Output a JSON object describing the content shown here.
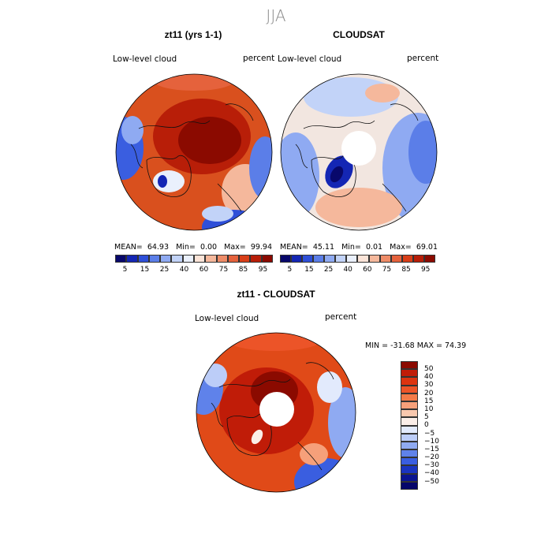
{
  "figure": {
    "season": "JJA",
    "panels": [
      {
        "title": "zt11 (yrs 1-1)",
        "variable": "Low-level cloud",
        "units": "percent",
        "mean_label": "MEAN=",
        "mean": "64.93",
        "min_label": "Min=",
        "min": "0.00",
        "max_label": "Max=",
        "max": "99.94",
        "hole": false,
        "base": "#d9501e"
      },
      {
        "title": "CLOUDSAT",
        "variable": "Low-level cloud",
        "units": "percent",
        "mean_label": "MEAN=",
        "mean": "45.11",
        "min_label": "Min=",
        "min": "0.01",
        "max_label": "Max=",
        "max": "69.01",
        "hole": true,
        "base": "#f2e6e0"
      },
      {
        "title": "zt11 - CLOUDSAT",
        "variable": "Low-level cloud",
        "units": "percent",
        "minmax_text": "MIN = -31.68 MAX =  74.39",
        "hole": true,
        "base": "#e04a18"
      }
    ],
    "abs_colorbar": {
      "ticks": [
        "5",
        "15",
        "25",
        "40",
        "60",
        "75",
        "85",
        "95"
      ],
      "colors": [
        "#08086b",
        "#1426b4",
        "#2e4fd8",
        "#5b7ee8",
        "#8faaf2",
        "#c2d3f8",
        "#eaf0fc",
        "#fbe4d8",
        "#f5b89c",
        "#ee8c68",
        "#e5623c",
        "#d83e18",
        "#b81e08",
        "#8b0a00"
      ]
    },
    "diff_colorbar": {
      "ticks": [
        "50",
        "40",
        "30",
        "20",
        "15",
        "10",
        "5",
        "0",
        "−5",
        "−10",
        "−15",
        "−20",
        "−30",
        "−40",
        "−50"
      ],
      "colors": [
        "#8b0a00",
        "#c01c08",
        "#dc3410",
        "#ec5428",
        "#f37a48",
        "#f6a07a",
        "#f9c8ae",
        "#fbeee8",
        "#e2eafc",
        "#bccdf8",
        "#8faaf2",
        "#5f82ea",
        "#3a5ee0",
        "#1a34c0",
        "#0a1490",
        "#06066a"
      ]
    }
  }
}
